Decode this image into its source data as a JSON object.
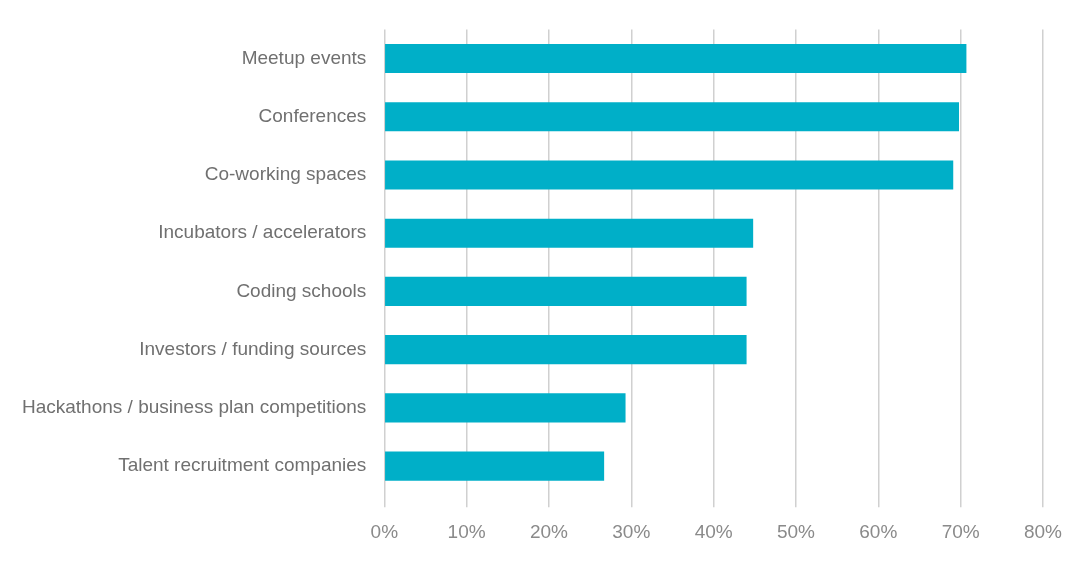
{
  "chart_data": {
    "type": "bar",
    "orientation": "horizontal",
    "categories": [
      "Meetup events",
      "Conferences",
      "Co-working spaces",
      "Incubators / accelerators",
      "Coding schools",
      "Investors / funding sources",
      "Hackathons / business plan competitions",
      "Talent recruitment companies"
    ],
    "values": [
      70.7,
      69.8,
      69.1,
      44.8,
      44.0,
      44.0,
      29.3,
      26.7
    ],
    "color": "#00afc8",
    "xlim": [
      0,
      80
    ],
    "xticks": [
      {
        "value": 0,
        "label": "0%"
      },
      {
        "value": 10,
        "label": "10%"
      },
      {
        "value": 20,
        "label": "20%"
      },
      {
        "value": 30,
        "label": "30%"
      },
      {
        "value": 40,
        "label": "40%"
      },
      {
        "value": 50,
        "label": "50%"
      },
      {
        "value": 60,
        "label": "60%"
      },
      {
        "value": 70,
        "label": "70%"
      },
      {
        "value": 80,
        "label": "80%"
      }
    ],
    "grid": "x",
    "legend": false
  }
}
